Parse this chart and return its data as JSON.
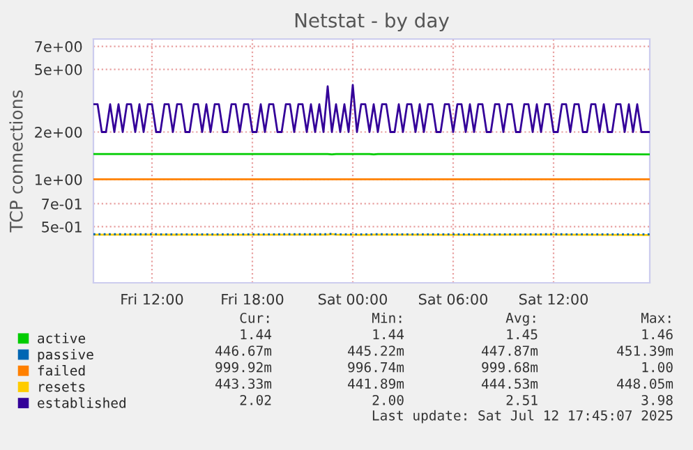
{
  "chart_data": {
    "type": "line",
    "title": "Netstat - by day",
    "ylabel": "TCP connections",
    "log": true,
    "ylim": [
      0.22,
      7.8
    ],
    "yticks": [
      {
        "value": 0.5,
        "label": "5e-01"
      },
      {
        "value": 0.7,
        "label": "7e-01"
      },
      {
        "value": 1,
        "label": "1e+00"
      },
      {
        "value": 2,
        "label": "2e+00"
      },
      {
        "value": 5,
        "label": "5e+00"
      },
      {
        "value": 7,
        "label": "7e+00"
      }
    ],
    "xlim": [
      "2025-07-11T08:30",
      "2025-07-12T17:45"
    ],
    "xticks": [
      {
        "value": "2025-07-11T12:00",
        "label": "Fri 12:00"
      },
      {
        "value": "2025-07-11T18:00",
        "label": "Fri 18:00"
      },
      {
        "value": "2025-07-12T00:00",
        "label": "Sat 00:00"
      },
      {
        "value": "2025-07-12T06:00",
        "label": "Sat 06:00"
      },
      {
        "value": "2025-07-12T12:00",
        "label": "Sat 12:00"
      }
    ],
    "grid": true,
    "legend": "bottom",
    "x": [
      "2025-07-11T08:30",
      "2025-07-11T12:00",
      "2025-07-11T16:00",
      "2025-07-11T20:00",
      "2025-07-11T22:30",
      "2025-07-11T22:45",
      "2025-07-11T23:00",
      "2025-07-12T01:00",
      "2025-07-12T01:15",
      "2025-07-12T01:30",
      "2025-07-12T06:00",
      "2025-07-12T12:00",
      "2025-07-12T17:45"
    ],
    "series": [
      {
        "name": "active",
        "color": "#00cc00",
        "values": [
          1.45,
          1.45,
          1.45,
          1.45,
          1.45,
          1.44,
          1.45,
          1.45,
          1.44,
          1.45,
          1.45,
          1.45,
          1.44
        ]
      },
      {
        "name": "passive",
        "color": "#0066b3",
        "line_style": "dotted",
        "values": [
          0.448,
          0.448,
          0.447,
          0.448,
          0.448,
          0.451,
          0.448,
          0.447,
          0.448,
          0.448,
          0.447,
          0.448,
          0.447
        ]
      },
      {
        "name": "failed",
        "color": "#ff8000",
        "values": [
          1.0,
          1.0,
          1.0,
          1.0,
          1.0,
          1.0,
          1.0,
          1.0,
          1.0,
          1.0,
          1.0,
          1.0,
          1.0
        ]
      },
      {
        "name": "resets",
        "color": "#ffcc00",
        "values": [
          0.445,
          0.445,
          0.444,
          0.445,
          0.445,
          0.448,
          0.445,
          0.444,
          0.445,
          0.445,
          0.444,
          0.445,
          0.443
        ]
      },
      {
        "name": "established",
        "color": "#330099",
        "x": [
          "2025-07-11T08:30",
          "2025-07-11T08:45",
          "2025-07-11T09:00",
          "2025-07-11T09:15",
          "2025-07-11T09:30",
          "2025-07-11T09:45",
          "2025-07-11T10:00",
          "2025-07-11T10:15",
          "2025-07-11T10:30",
          "2025-07-11T10:45",
          "2025-07-11T11:00",
          "2025-07-11T11:15",
          "2025-07-11T11:30",
          "2025-07-11T11:45",
          "2025-07-11T12:00",
          "2025-07-11T12:15",
          "2025-07-11T12:30",
          "2025-07-11T12:45",
          "2025-07-11T13:00",
          "2025-07-11T13:15",
          "2025-07-11T13:30",
          "2025-07-11T13:45",
          "2025-07-11T14:00",
          "2025-07-11T14:15",
          "2025-07-11T14:30",
          "2025-07-11T14:45",
          "2025-07-11T15:00",
          "2025-07-11T15:15",
          "2025-07-11T15:30",
          "2025-07-11T15:45",
          "2025-07-11T16:00",
          "2025-07-11T16:15",
          "2025-07-11T16:30",
          "2025-07-11T16:45",
          "2025-07-11T17:00",
          "2025-07-11T17:15",
          "2025-07-11T17:30",
          "2025-07-11T17:45",
          "2025-07-11T18:00",
          "2025-07-11T18:15",
          "2025-07-11T18:30",
          "2025-07-11T18:45",
          "2025-07-11T19:00",
          "2025-07-11T19:15",
          "2025-07-11T19:30",
          "2025-07-11T19:45",
          "2025-07-11T20:00",
          "2025-07-11T20:15",
          "2025-07-11T20:30",
          "2025-07-11T20:45",
          "2025-07-11T21:00",
          "2025-07-11T21:15",
          "2025-07-11T21:30",
          "2025-07-11T21:45",
          "2025-07-11T22:00",
          "2025-07-11T22:15",
          "2025-07-11T22:30",
          "2025-07-11T22:45",
          "2025-07-11T23:00",
          "2025-07-11T23:15",
          "2025-07-11T23:30",
          "2025-07-11T23:45",
          "2025-07-12T00:00",
          "2025-07-12T00:15",
          "2025-07-12T00:30",
          "2025-07-12T00:45",
          "2025-07-12T01:00",
          "2025-07-12T01:15",
          "2025-07-12T01:30",
          "2025-07-12T01:45",
          "2025-07-12T02:00",
          "2025-07-12T02:15",
          "2025-07-12T02:30",
          "2025-07-12T02:45",
          "2025-07-12T03:00",
          "2025-07-12T03:15",
          "2025-07-12T03:30",
          "2025-07-12T03:45",
          "2025-07-12T04:00",
          "2025-07-12T04:15",
          "2025-07-12T04:30",
          "2025-07-12T04:45",
          "2025-07-12T05:00",
          "2025-07-12T05:15",
          "2025-07-12T05:30",
          "2025-07-12T05:45",
          "2025-07-12T06:00",
          "2025-07-12T06:15",
          "2025-07-12T06:30",
          "2025-07-12T06:45",
          "2025-07-12T07:00",
          "2025-07-12T07:15",
          "2025-07-12T07:30",
          "2025-07-12T07:45",
          "2025-07-12T08:00",
          "2025-07-12T08:15",
          "2025-07-12T08:30",
          "2025-07-12T08:45",
          "2025-07-12T09:00",
          "2025-07-12T09:15",
          "2025-07-12T09:30",
          "2025-07-12T09:45",
          "2025-07-12T10:00",
          "2025-07-12T10:15",
          "2025-07-12T10:30",
          "2025-07-12T10:45",
          "2025-07-12T11:00",
          "2025-07-12T11:15",
          "2025-07-12T11:30",
          "2025-07-12T11:45",
          "2025-07-12T12:00",
          "2025-07-12T12:15",
          "2025-07-12T12:30",
          "2025-07-12T12:45",
          "2025-07-12T13:00",
          "2025-07-12T13:15",
          "2025-07-12T13:30",
          "2025-07-12T13:45",
          "2025-07-12T14:00",
          "2025-07-12T14:15",
          "2025-07-12T14:30",
          "2025-07-12T14:45",
          "2025-07-12T15:00",
          "2025-07-12T15:15",
          "2025-07-12T15:30",
          "2025-07-12T15:45",
          "2025-07-12T16:00",
          "2025-07-12T16:15",
          "2025-07-12T16:30",
          "2025-07-12T16:45",
          "2025-07-12T17:00",
          "2025-07-12T17:15",
          "2025-07-12T17:30",
          "2025-07-12T17:45"
        ],
        "values": [
          3,
          3,
          2,
          2,
          3,
          2,
          3,
          2,
          3,
          3,
          2,
          3,
          2,
          3,
          3,
          2,
          2,
          3,
          3,
          2,
          3,
          3,
          2,
          2,
          3,
          3,
          2,
          3,
          2,
          3,
          3,
          2,
          2,
          3,
          3,
          2,
          3,
          3,
          2,
          2,
          3,
          2,
          3,
          3,
          2,
          2,
          3,
          3,
          2,
          3,
          3,
          2,
          3,
          2,
          3,
          2,
          3.9,
          2,
          3,
          2,
          3,
          2,
          3.98,
          2,
          3,
          3,
          2,
          3,
          2,
          3,
          3,
          2,
          2,
          3,
          2,
          3,
          3,
          2,
          3,
          2,
          3,
          3,
          2,
          2,
          3,
          3,
          2,
          3,
          3,
          2,
          3,
          2,
          3,
          3,
          2,
          2,
          3,
          3,
          2,
          3,
          3,
          2,
          2,
          3,
          3,
          2,
          3,
          2,
          3,
          3,
          2,
          2,
          3,
          3,
          2,
          3,
          3,
          2,
          2,
          3,
          3,
          2,
          3,
          2,
          2,
          3,
          3,
          2,
          3,
          2,
          3,
          2,
          2,
          2
        ]
      }
    ],
    "annotations": [
      "Cur:",
      "Min:",
      "Avg:",
      "Max:",
      "1.44",
      "1.44",
      "1.45",
      "1.46",
      "446.67m",
      "445.22m",
      "447.87m",
      "451.39m",
      "999.92m",
      "996.74m",
      "999.68m",
      "1.00",
      "443.33m",
      "441.89m",
      "444.53m",
      "448.05m",
      "2.02",
      "2.00",
      "2.51",
      "3.98",
      "Last update: Sat Jul 12 17:45:07 2025"
    ]
  }
}
